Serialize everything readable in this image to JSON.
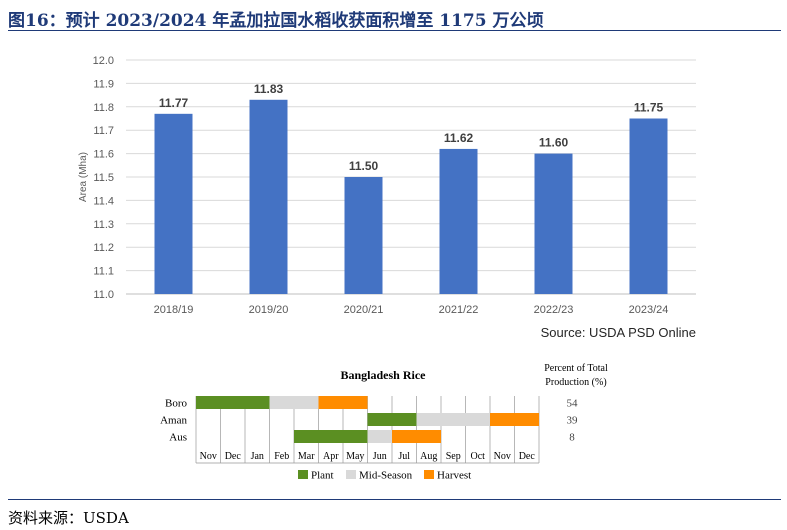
{
  "header": {
    "title": "图16：预计 2023/2024 年孟加拉国水稻收获面积增至 1175 万公顷"
  },
  "footer": {
    "source": "资料来源：USDA"
  },
  "chart_data": [
    {
      "type": "bar",
      "title": "",
      "xlabel": "",
      "ylabel": "Area (Mha)",
      "categories": [
        "2018/19",
        "2019/20",
        "2020/21",
        "2021/22",
        "2022/23",
        "2023/24"
      ],
      "values": [
        11.77,
        11.83,
        11.5,
        11.62,
        11.6,
        11.75
      ],
      "data_labels": [
        "11.77",
        "11.83",
        "11.50",
        "11.62",
        "11.60",
        "11.75"
      ],
      "ylim": [
        11.0,
        12.0
      ],
      "yticks": [
        "11.0",
        "11.1",
        "11.2",
        "11.3",
        "11.4",
        "11.5",
        "11.6",
        "11.7",
        "11.8",
        "11.9",
        "12.0"
      ],
      "grid": true,
      "bar_color": "#4472c4",
      "source_note": "Source: USDA PSD Online"
    },
    {
      "type": "table",
      "title": "Bangladesh Rice",
      "months": [
        "Nov",
        "Dec",
        "Jan",
        "Feb",
        "Mar",
        "Apr",
        "May",
        "Jun",
        "Jul",
        "Aug",
        "Sep",
        "Oct",
        "Nov",
        "Dec"
      ],
      "share_header": "Percent of Total Production (%)",
      "share_header_lines": [
        "Percent of Total",
        "Production (%)"
      ],
      "rows": [
        {
          "crop": "Boro",
          "share": "54",
          "segments": [
            {
              "stage": "plant",
              "start": 0,
              "end": 3
            },
            {
              "stage": "mid",
              "start": 3,
              "end": 5
            },
            {
              "stage": "harvest",
              "start": 5,
              "end": 7
            }
          ]
        },
        {
          "crop": "Aman",
          "share": "39",
          "segments": [
            {
              "stage": "plant",
              "start": 7,
              "end": 9
            },
            {
              "stage": "mid",
              "start": 9,
              "end": 12
            },
            {
              "stage": "harvest",
              "start": 12,
              "end": 14
            }
          ]
        },
        {
          "crop": "Aus",
          "share": "8",
          "segments": [
            {
              "stage": "plant",
              "start": 4,
              "end": 7
            },
            {
              "stage": "mid",
              "start": 7,
              "end": 8
            },
            {
              "stage": "harvest",
              "start": 8,
              "end": 10
            }
          ]
        }
      ],
      "legend": [
        {
          "stage": "plant",
          "label": "Plant",
          "color": "#5b8f22"
        },
        {
          "stage": "mid",
          "label": "Mid-Season",
          "color": "#d9d9d9"
        },
        {
          "stage": "harvest",
          "label": "Harvest",
          "color": "#ff8c00"
        }
      ]
    }
  ]
}
